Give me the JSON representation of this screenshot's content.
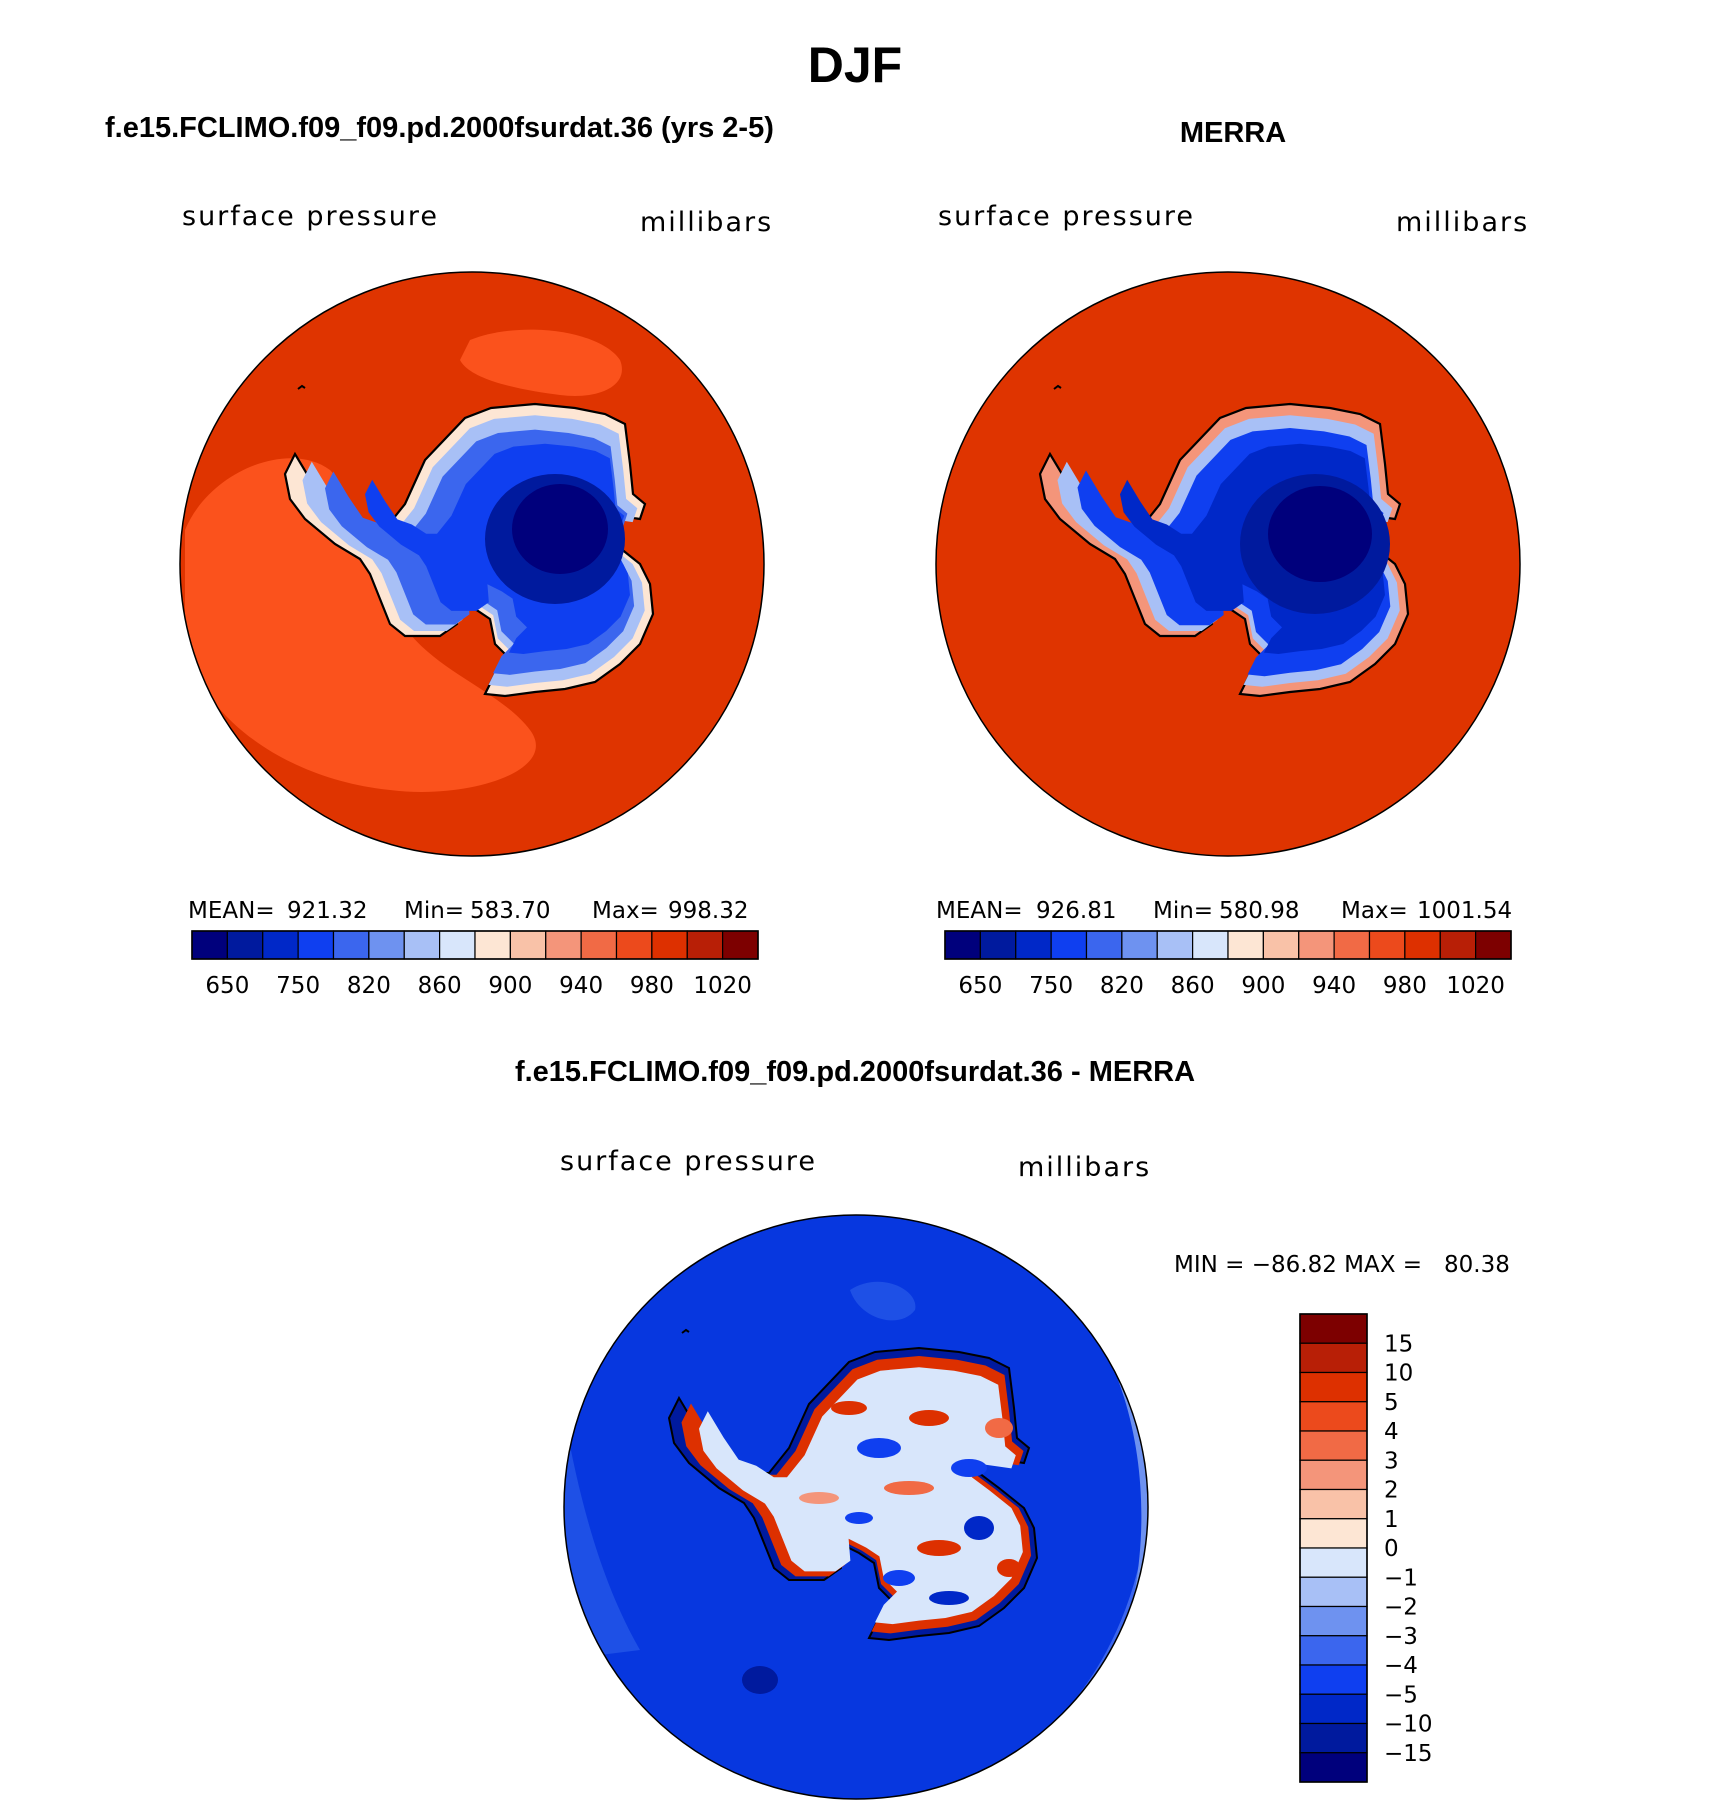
{
  "title": "DJF",
  "colors": {
    "scale": [
      "#00007c",
      "#001a9e",
      "#0028c8",
      "#0f3ff0",
      "#3b66ee",
      "#6e92f0",
      "#a8c0f6",
      "#d8e6fb",
      "#fde6d4",
      "#f9c2a8",
      "#f4957a",
      "#f16a45",
      "#ec4a1c",
      "#dd3000",
      "#b81f06",
      "#7d0000"
    ],
    "ocean_model": "#df3400",
    "ocean_model_band": "#fb521c",
    "ocean_merra": "#df3400",
    "diff_ocean": "#0737df",
    "diff_band": "#1e50e6",
    "land_core": "#00007c"
  },
  "chart_data": [
    {
      "type": "contour-map",
      "projection": "south-polar-stereographic",
      "title": "f.e15.FCLIMO.f09_f09.pd.2000fsurdat.36 (yrs 2-5)",
      "variable": "surface pressure",
      "units": "millibars",
      "stats": {
        "mean": "921.32",
        "min": "583.70",
        "max": "998.32"
      },
      "stats_labels": {
        "mean": "MEAN=",
        "min": "Min=",
        "max": "Max="
      },
      "colorbar": {
        "orientation": "horizontal",
        "levels": [
          620,
          650,
          700,
          750,
          800,
          820,
          840,
          860,
          880,
          900,
          920,
          940,
          960,
          980,
          1000,
          1020
        ],
        "tick_labels": [
          "650",
          "750",
          "820",
          "860",
          "900",
          "940",
          "980",
          "1020"
        ]
      }
    },
    {
      "type": "contour-map",
      "projection": "south-polar-stereographic",
      "title": "MERRA",
      "variable": "surface pressure",
      "units": "millibars",
      "stats": {
        "mean": "926.81",
        "min": "580.98",
        "max": "1001.54"
      },
      "stats_labels": {
        "mean": "MEAN=",
        "min": "Min=",
        "max": "Max="
      },
      "colorbar": {
        "orientation": "horizontal",
        "levels": [
          620,
          650,
          700,
          750,
          800,
          820,
          840,
          860,
          880,
          900,
          920,
          940,
          960,
          980,
          1000,
          1020
        ],
        "tick_labels": [
          "650",
          "750",
          "820",
          "860",
          "900",
          "940",
          "980",
          "1020"
        ]
      }
    },
    {
      "type": "contour-map",
      "projection": "south-polar-stereographic",
      "title": "f.e15.FCLIMO.f09_f09.pd.2000fsurdat.36 - MERRA",
      "variable": "surface pressure",
      "units": "millibars",
      "range_text": "MIN = −86.82 MAX =   80.38",
      "min": -86.82,
      "max": 80.38,
      "colorbar": {
        "orientation": "vertical",
        "levels": [
          15,
          10,
          5,
          4,
          3,
          2,
          1,
          0,
          -1,
          -2,
          -3,
          -4,
          -5,
          -10,
          -15
        ],
        "tick_labels": [
          "15",
          "10",
          "5",
          "4",
          "3",
          "2",
          "1",
          "0",
          "−1",
          "−2",
          "−3",
          "−4",
          "−5",
          "−10",
          "−15"
        ]
      }
    }
  ]
}
